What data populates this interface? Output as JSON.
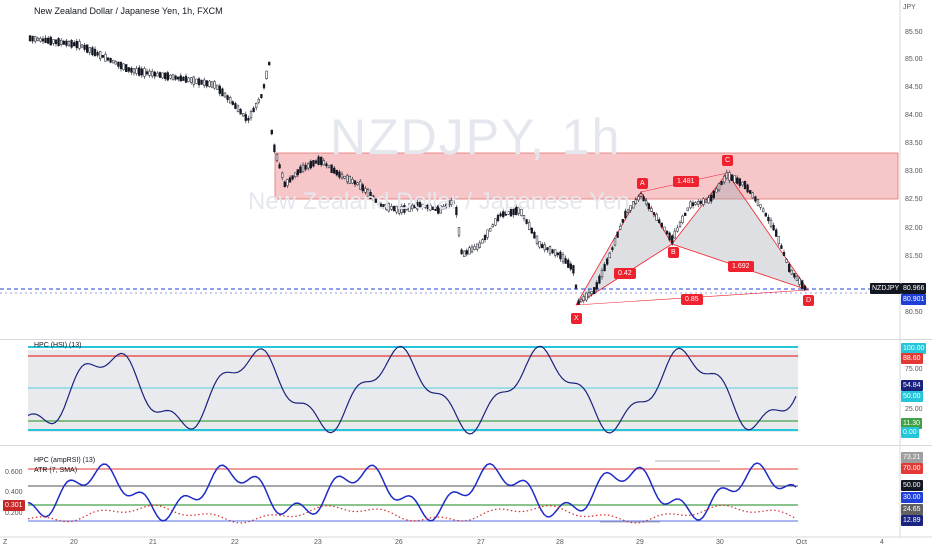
{
  "chart": {
    "title": "New Zealand Dollar / Japanese Yen, 1h, FXCM",
    "watermark_symbol": "NZDJPY, 1h",
    "watermark_name": "New Zealand Dollar / Japanese Yen",
    "currency": "JPY",
    "price_ticks": [
      "85.50",
      "85.00",
      "84.50",
      "84.00",
      "83.50",
      "83.00",
      "82.50",
      "82.00",
      "81.50",
      "80.50"
    ],
    "last_price_tag": {
      "symbol": "NZDJPY",
      "value": "80.966"
    },
    "second_price_tag": "80.901",
    "pattern_points": [
      "X",
      "A",
      "B",
      "C",
      "D"
    ],
    "ratios": [
      "0.42",
      "1.481",
      "1.692",
      "0.85"
    ],
    "date_ticks": [
      "20",
      "21",
      "22",
      "23",
      "26",
      "27",
      "28",
      "29",
      "30",
      "Oct",
      "4"
    ],
    "corner_left": "Z"
  },
  "indicator1": {
    "title": "HPC (HSI) (13)",
    "ticks": [
      "75.00",
      "25.00",
      "0.00"
    ],
    "tags": [
      {
        "value": "100.00",
        "color": "#26c6da"
      },
      {
        "value": "88.60",
        "color": "#e53935"
      },
      {
        "value": "54.84",
        "color": "#1a237e"
      },
      {
        "value": "50.00",
        "color": "#26c6da"
      },
      {
        "value": "11.30",
        "color": "#43a047"
      },
      {
        "value": "0.00",
        "color": "#26c6da"
      }
    ]
  },
  "indicator2": {
    "title": "HPC (ampRSI) (13)",
    "title2": "ATR (7, SMA)",
    "left_ticks": [
      "0.600",
      "0.400",
      "0.200"
    ],
    "left_tag": "0.301",
    "tags": [
      {
        "value": "73.21",
        "color": "#9e9e9e"
      },
      {
        "value": "70.00",
        "color": "#e53935"
      },
      {
        "value": "50.00",
        "color": "#131722"
      },
      {
        "value": "30.00",
        "color": "#1e3fd8"
      },
      {
        "value": "24.65",
        "color": "#616161"
      },
      {
        "value": "12.89",
        "color": "#1a237e"
      }
    ]
  },
  "colors": {
    "up": "#131722",
    "down": "#131722",
    "zone": "#f4b8bc",
    "zone_border": "#e57373",
    "pattern": "#f0212e",
    "hsi_line": "#1a237e",
    "cyan": "#26c6da",
    "red": "#e53935",
    "green": "#43a047",
    "blue_dash": "#1e3fd8"
  }
}
